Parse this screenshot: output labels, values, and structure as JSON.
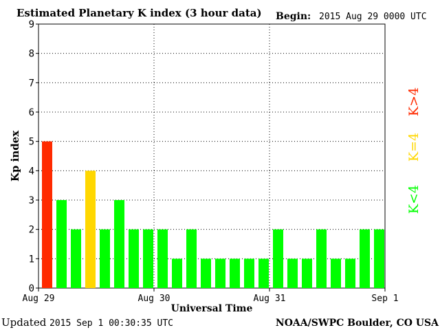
{
  "chart_data": {
    "type": "bar",
    "title": "Estimated Planetary K index (3 hour data)",
    "begin_label": "Begin:",
    "begin_value": "2015 Aug 29 0000 UTC",
    "ylabel": "Kp index",
    "xlabel": "Universal Time",
    "ylim": [
      0,
      9
    ],
    "yticks": [
      "0",
      "1",
      "2",
      "3",
      "4",
      "5",
      "6",
      "7",
      "8",
      "9"
    ],
    "xtick_labels": [
      "Aug 29",
      "Aug 30",
      "Aug 31",
      "Sep 1"
    ],
    "values": [
      5,
      3,
      2,
      4,
      2,
      3,
      2,
      2,
      2,
      1,
      2,
      1,
      1,
      1,
      1,
      1,
      2,
      1,
      1,
      2,
      1,
      1,
      2,
      2
    ],
    "grid": true,
    "legend": [
      {
        "label": "K<4",
        "color": "#00ff00"
      },
      {
        "label": "K=4",
        "color": "#ffd700"
      },
      {
        "label": "K>4",
        "color": "#ff2a00"
      }
    ]
  },
  "footer": {
    "updated_label": "Updated",
    "updated_value": "2015 Sep  1 00:30:35 UTC",
    "source": "NOAA/SWPC Boulder, CO USA"
  }
}
